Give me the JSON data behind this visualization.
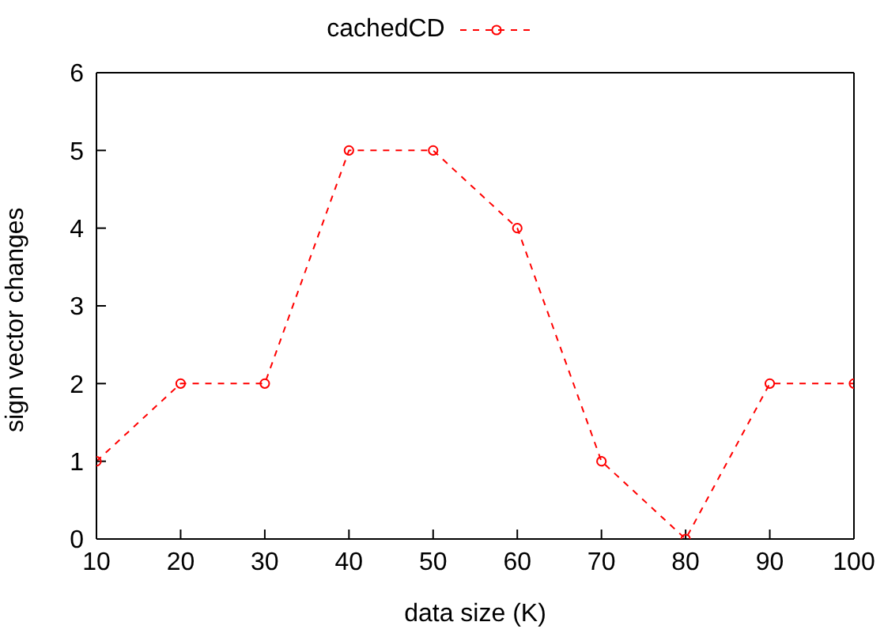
{
  "chart_data": {
    "type": "line",
    "xlabel": "data size (K)",
    "ylabel": "sign vector changes",
    "x": [
      10,
      20,
      30,
      40,
      50,
      60,
      70,
      80,
      90,
      100
    ],
    "series": [
      {
        "name": "cachedCD",
        "color": "#ff0000",
        "values": [
          1,
          2,
          2,
          5,
          5,
          4,
          1,
          0,
          2,
          2
        ]
      }
    ],
    "xlim": [
      10,
      100
    ],
    "xticks": [
      10,
      20,
      30,
      40,
      50,
      60,
      70,
      80,
      90,
      100
    ],
    "ylim": [
      0,
      6
    ],
    "yticks": [
      0,
      1,
      2,
      3,
      4,
      5,
      6
    ],
    "grid": false,
    "legend": "top",
    "marker": "circle",
    "line_style": "dashed"
  }
}
